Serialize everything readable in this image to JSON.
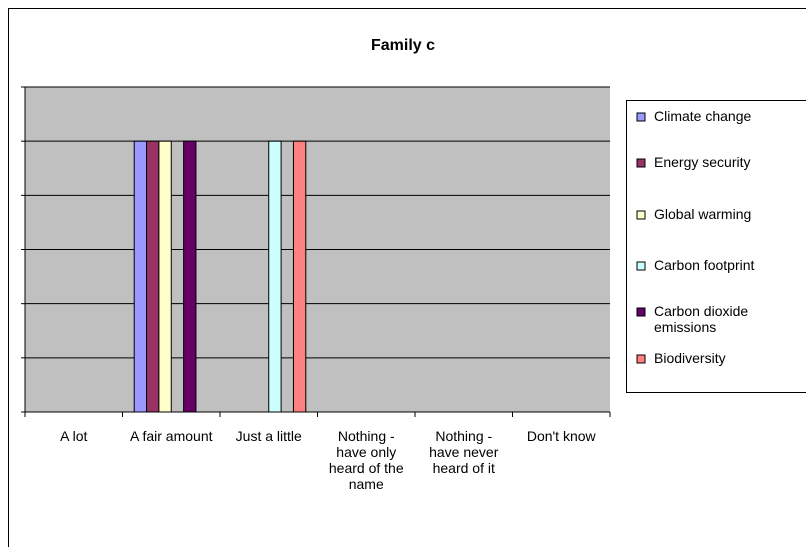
{
  "chart_data": {
    "type": "bar",
    "title": "Family c",
    "categories": [
      "A lot",
      "A fair amount",
      "Just a little",
      "Nothing - have only heard of the name",
      "Nothing - have never heard of it",
      "Don't know"
    ],
    "series": [
      {
        "name": "Climate change",
        "color": "#9999ff",
        "values": [
          0,
          1,
          0,
          0,
          0,
          0
        ]
      },
      {
        "name": "Energy security",
        "color": "#993366",
        "values": [
          0,
          1,
          0,
          0,
          0,
          0
        ]
      },
      {
        "name": "Global warming",
        "color": "#ffffcc",
        "values": [
          0,
          1,
          0,
          0,
          0,
          0
        ]
      },
      {
        "name": "Carbon footprint",
        "color": "#ccffff",
        "values": [
          0,
          0,
          1,
          0,
          0,
          0
        ]
      },
      {
        "name": "Carbon dioxide emissions",
        "color": "#660066",
        "values": [
          0,
          1,
          0,
          0,
          0,
          0
        ]
      },
      {
        "name": "Biodiversity",
        "color": "#ff8080",
        "values": [
          0,
          0,
          1,
          0,
          0,
          0
        ]
      }
    ],
    "ylim": [
      0,
      1.2
    ],
    "yticks": [
      0,
      0.2,
      0.4,
      0.6,
      0.8,
      1,
      1.2
    ],
    "grid": true,
    "legend": "right"
  }
}
